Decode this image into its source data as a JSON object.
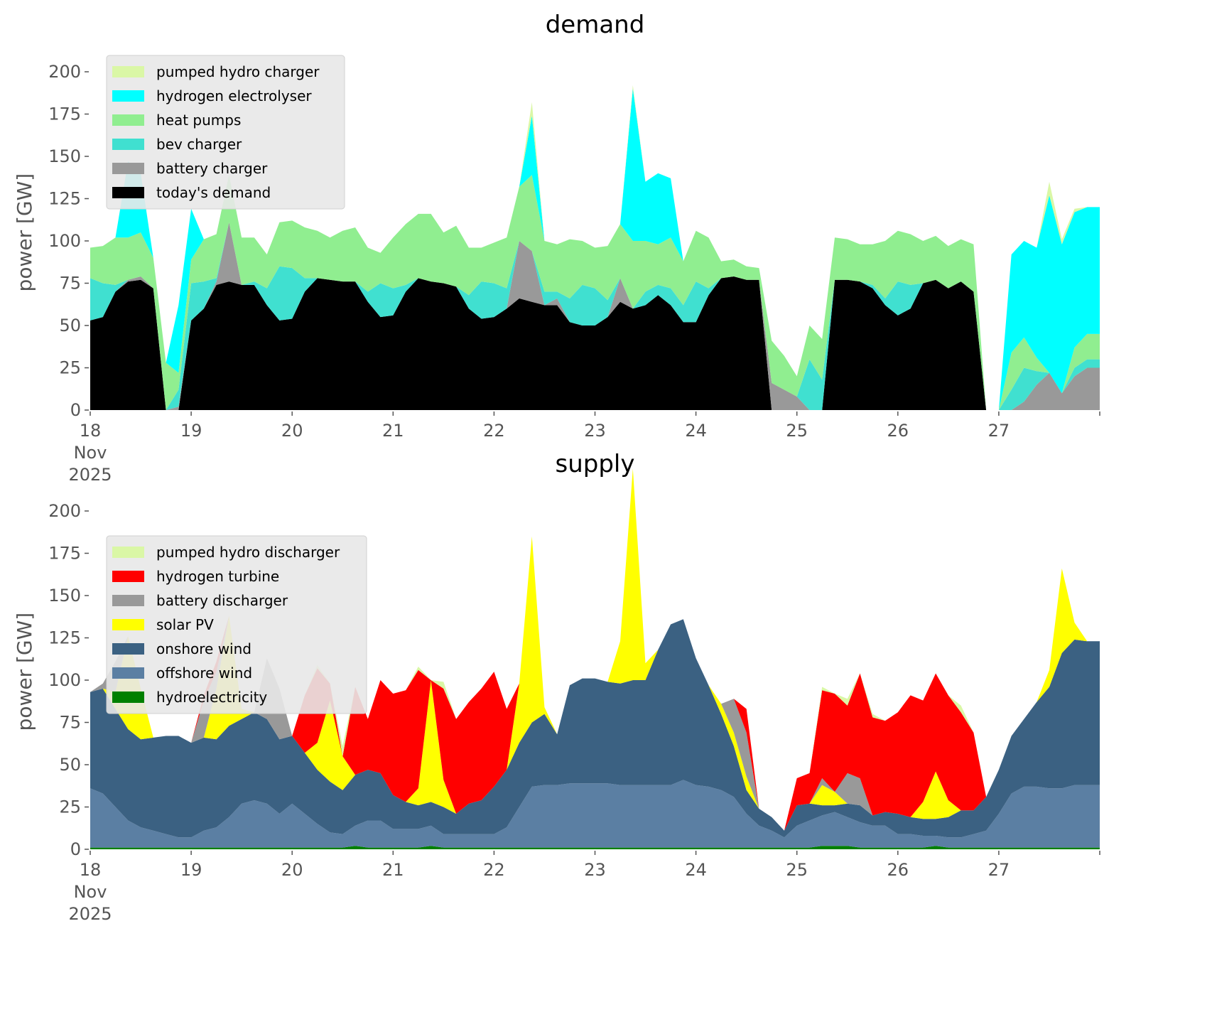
{
  "chart_data": [
    {
      "type": "area",
      "stacked": true,
      "title": "demand",
      "xlabel": "",
      "ylabel": "power [GW]",
      "ylim": [
        0,
        210
      ],
      "yticks": [
        0,
        25,
        50,
        75,
        100,
        125,
        150,
        175,
        200
      ],
      "xlim_days": [
        18,
        28
      ],
      "xticks": [
        "18\nNov\n2025",
        "19",
        "20",
        "21",
        "22",
        "23",
        "24",
        "25",
        "26",
        "27"
      ],
      "legend_position": "top-left",
      "grid": false,
      "x_step_hours": 3,
      "x_start": "2025-11-18 00:00",
      "series": [
        {
          "name": "today's demand",
          "color": "#000000",
          "values": [
            53,
            55,
            70,
            76,
            77,
            72,
            0,
            0,
            53,
            60,
            74,
            76,
            74,
            74,
            62,
            53,
            54,
            70,
            78,
            77,
            76,
            76,
            64,
            55,
            56,
            70,
            78,
            76,
            75,
            73,
            60,
            54,
            55,
            60,
            66,
            64,
            62,
            62,
            52,
            50,
            50,
            55,
            64,
            60,
            62,
            68,
            62,
            52,
            52,
            68,
            78,
            79,
            77,
            77,
            0,
            0,
            0,
            0,
            0,
            77,
            77,
            76,
            72,
            62,
            56,
            60,
            75,
            77,
            72,
            76,
            70,
            0,
            0,
            0,
            0,
            0,
            0,
            0,
            0,
            0
          ]
        },
        {
          "name": "battery charger",
          "color": "#999999",
          "values": [
            0,
            0,
            0,
            1,
            2,
            0,
            0,
            2,
            0,
            0,
            2,
            35,
            0,
            0,
            0,
            0,
            0,
            0,
            0,
            0,
            0,
            0,
            0,
            0,
            0,
            0,
            0,
            0,
            0,
            0,
            0,
            0,
            0,
            0,
            34,
            30,
            0,
            4,
            0,
            0,
            0,
            0,
            14,
            0,
            0,
            0,
            0,
            0,
            0,
            0,
            0,
            0,
            0,
            0,
            16,
            12,
            8,
            0,
            0,
            0,
            0,
            0,
            0,
            0,
            0,
            0,
            0,
            0,
            0,
            0,
            0,
            0,
            0,
            0,
            5,
            15,
            22,
            10,
            20,
            25
          ]
        },
        {
          "name": "bev charger",
          "color": "#40E0D0",
          "values": [
            25,
            20,
            4,
            0,
            0,
            0,
            0,
            10,
            22,
            16,
            2,
            0,
            0,
            2,
            10,
            32,
            30,
            8,
            0,
            0,
            0,
            0,
            6,
            20,
            16,
            4,
            0,
            0,
            0,
            0,
            8,
            22,
            20,
            12,
            0,
            0,
            8,
            4,
            14,
            24,
            22,
            10,
            0,
            0,
            8,
            6,
            10,
            10,
            24,
            4,
            0,
            0,
            0,
            0,
            0,
            0,
            0,
            30,
            18,
            0,
            0,
            0,
            2,
            4,
            20,
            14,
            0,
            0,
            0,
            0,
            0,
            0,
            0,
            12,
            20,
            8,
            0,
            0,
            5,
            5
          ]
        },
        {
          "name": "heat pumps",
          "color": "#90EE90",
          "values": [
            18,
            22,
            28,
            25,
            26,
            18,
            28,
            10,
            14,
            25,
            26,
            28,
            28,
            26,
            20,
            26,
            28,
            30,
            28,
            25,
            30,
            32,
            26,
            18,
            30,
            36,
            38,
            40,
            30,
            36,
            28,
            20,
            24,
            30,
            32,
            45,
            30,
            28,
            35,
            26,
            24,
            32,
            32,
            40,
            30,
            24,
            30,
            26,
            30,
            30,
            10,
            10,
            8,
            7,
            25,
            20,
            12,
            20,
            24,
            25,
            24,
            22,
            24,
            34,
            30,
            30,
            25,
            26,
            25,
            25,
            28,
            0,
            0,
            22,
            18,
            8,
            0,
            0,
            12,
            15
          ]
        },
        {
          "name": "hydrogen electrolyser",
          "color": "#00FFFF",
          "values": [
            0,
            0,
            0,
            45,
            35,
            0,
            0,
            40,
            30,
            0,
            0,
            0,
            0,
            0,
            0,
            0,
            0,
            0,
            0,
            0,
            0,
            0,
            0,
            0,
            0,
            0,
            0,
            0,
            0,
            0,
            0,
            0,
            0,
            0,
            0,
            35,
            0,
            0,
            0,
            0,
            0,
            0,
            0,
            90,
            35,
            42,
            35,
            0,
            0,
            0,
            0,
            0,
            0,
            0,
            0,
            0,
            0,
            0,
            0,
            0,
            0,
            0,
            0,
            0,
            0,
            0,
            0,
            0,
            0,
            0,
            0,
            0,
            0,
            58,
            57,
            65,
            105,
            88,
            80,
            75
          ]
        },
        {
          "name": "pumped hydro charger",
          "color": "#DAF7A6",
          "values": [
            0,
            0,
            0,
            0,
            0,
            0,
            0,
            0,
            0,
            0,
            0,
            0,
            0,
            0,
            0,
            0,
            0,
            0,
            0,
            0,
            0,
            0,
            0,
            0,
            0,
            0,
            0,
            0,
            0,
            0,
            0,
            0,
            0,
            0,
            0,
            8,
            0,
            0,
            0,
            0,
            0,
            0,
            0,
            2,
            0,
            0,
            0,
            0,
            0,
            0,
            0,
            0,
            0,
            0,
            0,
            0,
            0,
            0,
            0,
            0,
            0,
            0,
            0,
            0,
            0,
            0,
            0,
            0,
            0,
            0,
            0,
            0,
            0,
            0,
            0,
            0,
            8,
            3,
            2,
            0
          ]
        }
      ]
    },
    {
      "type": "area",
      "stacked": true,
      "title": "supply",
      "xlabel": "",
      "ylabel": "power [GW]",
      "ylim": [
        0,
        210
      ],
      "yticks": [
        0,
        25,
        50,
        75,
        100,
        125,
        150,
        175,
        200
      ],
      "xlim_days": [
        18,
        28
      ],
      "xticks": [
        "18\nNov\n2025",
        "19",
        "20",
        "21",
        "22",
        "23",
        "24",
        "25",
        "26",
        "27"
      ],
      "legend_position": "top-left",
      "grid": false,
      "x_step_hours": 3,
      "x_start": "2025-11-18 00:00",
      "series": [
        {
          "name": "hydroelectricity",
          "color": "#008000",
          "values": [
            1,
            1,
            1,
            1,
            1,
            1,
            1,
            1,
            1,
            1,
            1,
            1,
            1,
            1,
            1,
            1,
            1,
            1,
            1,
            1,
            1,
            2,
            1,
            1,
            1,
            1,
            1,
            2,
            1,
            1,
            1,
            1,
            1,
            1,
            1,
            1,
            1,
            1,
            1,
            1,
            1,
            1,
            1,
            1,
            1,
            1,
            1,
            1,
            1,
            1,
            1,
            1,
            1,
            1,
            1,
            1,
            1,
            1,
            2,
            2,
            2,
            1,
            1,
            1,
            1,
            1,
            1,
            2,
            1,
            1,
            1,
            1,
            1,
            1,
            1,
            1,
            1,
            1,
            1,
            1
          ]
        },
        {
          "name": "offshore wind",
          "color": "#5B7FA3",
          "values": [
            35,
            32,
            24,
            16,
            12,
            10,
            8,
            6,
            6,
            10,
            12,
            18,
            26,
            28,
            26,
            20,
            26,
            20,
            14,
            9,
            8,
            12,
            16,
            16,
            11,
            11,
            11,
            12,
            8,
            8,
            8,
            8,
            8,
            12,
            24,
            36,
            37,
            37,
            38,
            38,
            38,
            38,
            37,
            37,
            37,
            37,
            37,
            40,
            37,
            36,
            34,
            30,
            20,
            13,
            10,
            6,
            13,
            16,
            18,
            20,
            17,
            15,
            13,
            13,
            8,
            8,
            7,
            6,
            6,
            6,
            8,
            10,
            20,
            32,
            36,
            36,
            35,
            35,
            37,
            37
          ]
        },
        {
          "name": "onshore wind",
          "color": "#3B6182",
          "values": [
            57,
            62,
            58,
            54,
            52,
            55,
            58,
            60,
            56,
            55,
            52,
            54,
            50,
            52,
            50,
            44,
            40,
            36,
            32,
            30,
            26,
            30,
            30,
            28,
            20,
            16,
            14,
            14,
            16,
            12,
            18,
            20,
            28,
            34,
            38,
            38,
            42,
            30,
            58,
            62,
            62,
            60,
            60,
            62,
            62,
            80,
            95,
            95,
            75,
            60,
            45,
            30,
            14,
            10,
            8,
            4,
            12,
            10,
            6,
            4,
            8,
            10,
            6,
            8,
            12,
            10,
            10,
            10,
            12,
            16,
            14,
            20,
            26,
            34,
            40,
            50,
            60,
            80,
            86,
            85
          ]
        },
        {
          "name": "solar PV",
          "color": "#FFFF00",
          "values": [
            0,
            0,
            10,
            55,
            30,
            0,
            0,
            0,
            0,
            0,
            30,
            65,
            6,
            0,
            0,
            0,
            0,
            0,
            16,
            48,
            20,
            0,
            0,
            0,
            0,
            0,
            10,
            72,
            16,
            0,
            0,
            0,
            0,
            0,
            35,
            110,
            4,
            0,
            0,
            0,
            0,
            0,
            25,
            125,
            10,
            0,
            0,
            0,
            0,
            0,
            6,
            8,
            8,
            0,
            0,
            0,
            0,
            0,
            12,
            8,
            0,
            0,
            0,
            0,
            0,
            0,
            10,
            28,
            10,
            0,
            0,
            0,
            0,
            0,
            0,
            0,
            10,
            50,
            10,
            0
          ]
        },
        {
          "name": "battery discharger",
          "color": "#999999",
          "values": [
            0,
            3,
            18,
            0,
            0,
            0,
            0,
            0,
            0,
            22,
            10,
            0,
            0,
            0,
            36,
            30,
            0,
            0,
            0,
            0,
            0,
            0,
            0,
            0,
            0,
            0,
            0,
            0,
            0,
            0,
            0,
            0,
            0,
            0,
            0,
            0,
            0,
            0,
            0,
            0,
            0,
            0,
            0,
            0,
            0,
            0,
            0,
            0,
            0,
            0,
            0,
            20,
            26,
            0,
            0,
            0,
            0,
            0,
            4,
            0,
            18,
            16,
            0,
            0,
            0,
            0,
            0,
            0,
            0,
            0,
            0,
            0,
            0,
            0,
            0,
            0,
            0,
            0,
            0,
            0
          ]
        },
        {
          "name": "hydrogen turbine",
          "color": "#FF0000",
          "values": [
            0,
            0,
            0,
            0,
            0,
            0,
            0,
            0,
            0,
            3,
            6,
            0,
            0,
            0,
            0,
            0,
            0,
            34,
            44,
            10,
            0,
            52,
            30,
            55,
            60,
            66,
            70,
            0,
            54,
            56,
            60,
            66,
            68,
            36,
            0,
            0,
            0,
            0,
            0,
            0,
            0,
            0,
            0,
            0,
            0,
            0,
            0,
            0,
            0,
            0,
            0,
            0,
            14,
            0,
            0,
            0,
            16,
            18,
            52,
            58,
            40,
            62,
            58,
            54,
            60,
            72,
            60,
            58,
            62,
            58,
            46,
            0,
            0,
            0,
            0,
            0,
            0,
            0,
            0,
            0
          ]
        },
        {
          "name": "pumped hydro discharger",
          "color": "#DAF7A6",
          "values": [
            0,
            0,
            0,
            0,
            0,
            0,
            0,
            0,
            0,
            0,
            0,
            0,
            0,
            0,
            0,
            0,
            0,
            0,
            2,
            0,
            6,
            0,
            0,
            0,
            0,
            0,
            2,
            0,
            4,
            0,
            0,
            0,
            0,
            0,
            0,
            0,
            0,
            0,
            0,
            0,
            0,
            0,
            0,
            0,
            0,
            0,
            0,
            0,
            0,
            0,
            0,
            0,
            0,
            0,
            0,
            0,
            0,
            0,
            2,
            0,
            4,
            0,
            2,
            0,
            0,
            0,
            0,
            0,
            0,
            4,
            0,
            0,
            0,
            0,
            0,
            0,
            0,
            0,
            0,
            0
          ]
        }
      ]
    }
  ],
  "legends": {
    "demand": [
      "pumped hydro charger",
      "hydrogen electrolyser",
      "heat pumps",
      "bev charger",
      "battery charger",
      "today's demand"
    ],
    "supply": [
      "pumped hydro discharger",
      "hydrogen turbine",
      "battery discharger",
      "solar PV",
      "onshore wind",
      "offshore wind",
      "hydroelectricity"
    ]
  }
}
